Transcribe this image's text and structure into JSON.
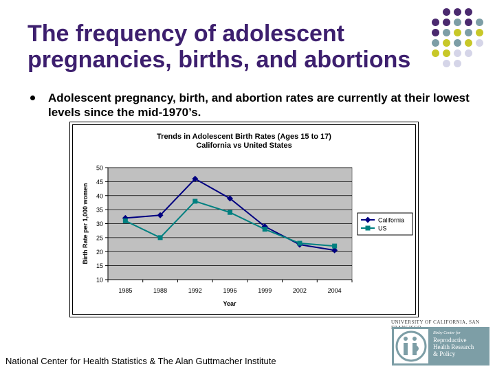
{
  "slide": {
    "title": "The frequency of adolescent pregnancies, births, and abortions",
    "bullet": "Adolescent pregnancy, birth, and abortion rates are currently at their lowest levels since the mid-1970’s.",
    "source": "National Center for Health Statistics & The Alan Guttmacher Institute"
  },
  "logo": {
    "university": "UNIVERSITY OF CALIFORNIA, SAN FRANCISCO",
    "center_small": "Bixby Center for",
    "center_lines": [
      "Reproductive",
      "Health Research",
      "& Policy"
    ]
  },
  "colors": {
    "title": "#3d1f6e",
    "california": "#000080",
    "us": "#008080",
    "plot_bg": "#c0c0c0",
    "dot_purple": "#4b2a6f",
    "dot_teal": "#7d9ea6",
    "dot_yellow": "#c8c828",
    "dot_lavender": "#d5d5e8"
  },
  "chart_data": {
    "type": "line",
    "title": "Trends in Adolescent Birth Rates (Ages 15 to 17)",
    "subtitle": "California vs United States",
    "xlabel": "Year",
    "ylabel": "Birth Rate per 1,000 women",
    "categories": [
      "1985",
      "1988",
      "1992",
      "1996",
      "1999",
      "2002",
      "2004"
    ],
    "ylim": [
      10,
      50
    ],
    "yticks": [
      10,
      15,
      20,
      25,
      30,
      35,
      40,
      45,
      50
    ],
    "grid": true,
    "legend": "right",
    "series": [
      {
        "name": "California",
        "marker": "diamond",
        "values": [
          32,
          33,
          46,
          39,
          29,
          22.5,
          20.5
        ]
      },
      {
        "name": "US",
        "marker": "square",
        "values": [
          31,
          25,
          38,
          34,
          28,
          23,
          22
        ]
      }
    ]
  }
}
